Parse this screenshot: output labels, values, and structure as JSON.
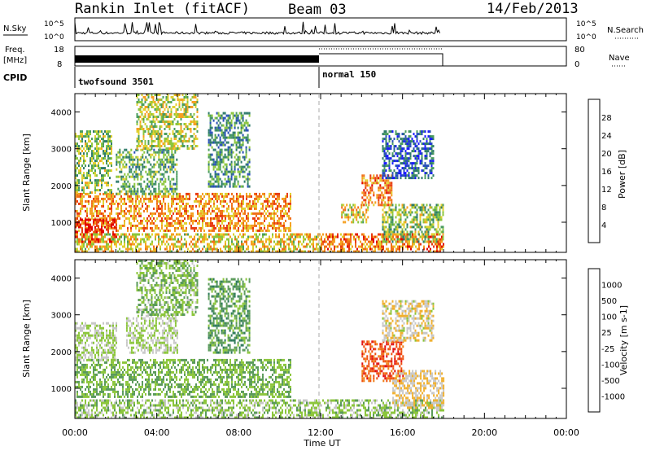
{
  "header": {
    "station": "Rankin Inlet (fitACF)",
    "beam": "Beam 03",
    "date": "14/Feb/2013"
  },
  "top_panels": {
    "nsky_label": "N.Sky",
    "nsky_ticks": [
      "10^5",
      "10^0"
    ],
    "nsearch_label": "N.Search",
    "nsearch_ticks": [
      "10^5",
      "10^0"
    ],
    "freq_label_1": "Freq.",
    "freq_label_2": "[MHz]",
    "freq_ticks": [
      "18",
      "8"
    ],
    "nave_label": "Nave",
    "nave_ticks": [
      "80",
      "0"
    ],
    "cpid_label": "CPID",
    "cpid_modes": [
      {
        "name": "twofsound 3501",
        "start_hour": 0,
        "end_hour": 12
      },
      {
        "name": "normal 150",
        "start_hour": 12,
        "end_hour": 18
      }
    ]
  },
  "chart_data": [
    {
      "type": "heatmap",
      "title": "Power",
      "xlabel": "Time UT",
      "ylabel": "Slant Range [km]",
      "xlim": [
        0,
        24
      ],
      "ylim": [
        180,
        4500
      ],
      "x_ticks": [
        "00:00",
        "04:00",
        "08:00",
        "12:00",
        "16:00",
        "20:00",
        "00:00"
      ],
      "y_ticks": [
        1000,
        2000,
        3000,
        4000
      ],
      "colorbar": {
        "label": "Power [dB]",
        "ticks": [
          4,
          8,
          12,
          16,
          20,
          24,
          28
        ],
        "colors": [
          "#1a1aff",
          "#2850b8",
          "#2e7a6a",
          "#4a9c5e",
          "#8cc63c",
          "#e0d030",
          "#f5a020",
          "#f07018",
          "#e83a10",
          "#e00000"
        ]
      },
      "regions": [
        {
          "t0": 0.0,
          "t1": 10.5,
          "r0": 800,
          "r1": 1800,
          "value": 22
        },
        {
          "t0": 0.0,
          "t1": 2.0,
          "r0": 500,
          "r1": 1100,
          "value": 28
        },
        {
          "t0": 0.0,
          "t1": 1.8,
          "r0": 1800,
          "r1": 3500,
          "value": 14
        },
        {
          "t0": 2.0,
          "t1": 5.0,
          "r0": 1800,
          "r1": 3000,
          "value": 12
        },
        {
          "t0": 3.0,
          "t1": 6.0,
          "r0": 3000,
          "r1": 4500,
          "value": 16
        },
        {
          "t0": 6.5,
          "t1": 8.5,
          "r0": 2000,
          "r1": 4000,
          "value": 10
        },
        {
          "t0": 0.0,
          "t1": 12.0,
          "r0": 200,
          "r1": 700,
          "value": 18
        },
        {
          "t0": 12.0,
          "t1": 18.0,
          "r0": 200,
          "r1": 700,
          "value": 24
        },
        {
          "t0": 13.0,
          "t1": 14.3,
          "r0": 1000,
          "r1": 1500,
          "value": 18
        },
        {
          "t0": 14.0,
          "t1": 15.5,
          "r0": 1500,
          "r1": 2300,
          "value": 24
        },
        {
          "t0": 15.0,
          "t1": 18.0,
          "r0": 500,
          "r1": 1500,
          "value": 14
        },
        {
          "t0": 15.0,
          "t1": 17.5,
          "r0": 2200,
          "r1": 3500,
          "value": 6
        }
      ]
    },
    {
      "type": "heatmap",
      "title": "Velocity",
      "xlabel": "Time UT",
      "ylabel": "Slant Range [km]",
      "xlim": [
        0,
        24
      ],
      "ylim": [
        180,
        4500
      ],
      "x_ticks": [
        "00:00",
        "04:00",
        "08:00",
        "12:00",
        "16:00",
        "20:00",
        "00:00"
      ],
      "y_ticks": [
        1000,
        2000,
        3000,
        4000
      ],
      "colorbar": {
        "label": "Velocity [m s-1]",
        "ticks": [
          1000,
          500,
          100,
          25,
          -25,
          -100,
          -500,
          -1000
        ],
        "colors": [
          "#1a3aa8",
          "#2a6a9a",
          "#2e7a5a",
          "#5a9a5a",
          "#8cc63c",
          "#c8c8c8",
          "#f0b030",
          "#f08018",
          "#f05010",
          "#e01010"
        ]
      },
      "regions": [
        {
          "t0": 0.0,
          "t1": 10.5,
          "r0": 800,
          "r1": 1800,
          "value": 200
        },
        {
          "t0": 0.0,
          "t1": 2.0,
          "r0": 1800,
          "r1": 2800,
          "value": 0
        },
        {
          "t0": 2.5,
          "t1": 5.0,
          "r0": 2000,
          "r1": 3000,
          "value": 0
        },
        {
          "t0": 3.0,
          "t1": 6.0,
          "r0": 3000,
          "r1": 4500,
          "value": 150
        },
        {
          "t0": 6.5,
          "t1": 8.5,
          "r0": 2000,
          "r1": 4000,
          "value": 300
        },
        {
          "t0": 0.0,
          "t1": 12.0,
          "r0": 200,
          "r1": 700,
          "value": 80
        },
        {
          "t0": 12.0,
          "t1": 18.0,
          "r0": 200,
          "r1": 700,
          "value": 100
        },
        {
          "t0": 14.0,
          "t1": 16.0,
          "r0": 1200,
          "r1": 2300,
          "value": -700
        },
        {
          "t0": 15.5,
          "t1": 18.0,
          "r0": 500,
          "r1": 1500,
          "value": -200
        },
        {
          "t0": 15.0,
          "t1": 17.5,
          "r0": 2300,
          "r1": 3400,
          "value": -150
        }
      ]
    }
  ]
}
